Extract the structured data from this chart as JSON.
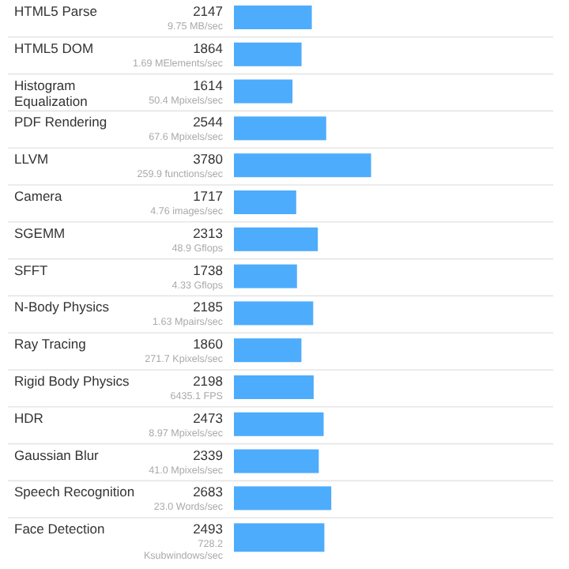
{
  "chart_data": {
    "type": "bar",
    "orientation": "horizontal",
    "color": "#4eacfc",
    "xlim": [
      0,
      8800
    ],
    "data_labels": true,
    "categories": [
      "HTML5 Parse",
      "HTML5 DOM",
      "Histogram Equalization",
      "PDF Rendering",
      "LLVM",
      "Camera",
      "SGEMM",
      "SFFT",
      "N-Body Physics",
      "Ray Tracing",
      "Rigid Body Physics",
      "HDR",
      "Gaussian Blur",
      "Speech Recognition",
      "Face Detection"
    ],
    "values": [
      2147,
      1864,
      1614,
      2544,
      3780,
      1717,
      2313,
      1738,
      2185,
      1860,
      2198,
      2473,
      2339,
      2683,
      2493
    ],
    "annotations": [
      "9.75 MB/sec",
      "1.69 MElements/sec",
      "50.4 Mpixels/sec",
      "67.6 Mpixels/sec",
      "259.9 functions/sec",
      "4.76 images/sec",
      "48.9 Gflops",
      "4.33 Gflops",
      "1.63 Mpairs/sec",
      "271.7 Kpixels/sec",
      "6435.1 FPS",
      "8.97 Mpixels/sec",
      "41.0 Mpixels/sec",
      "23.0 Words/sec",
      "728.2 Ksubwindows/sec"
    ]
  }
}
